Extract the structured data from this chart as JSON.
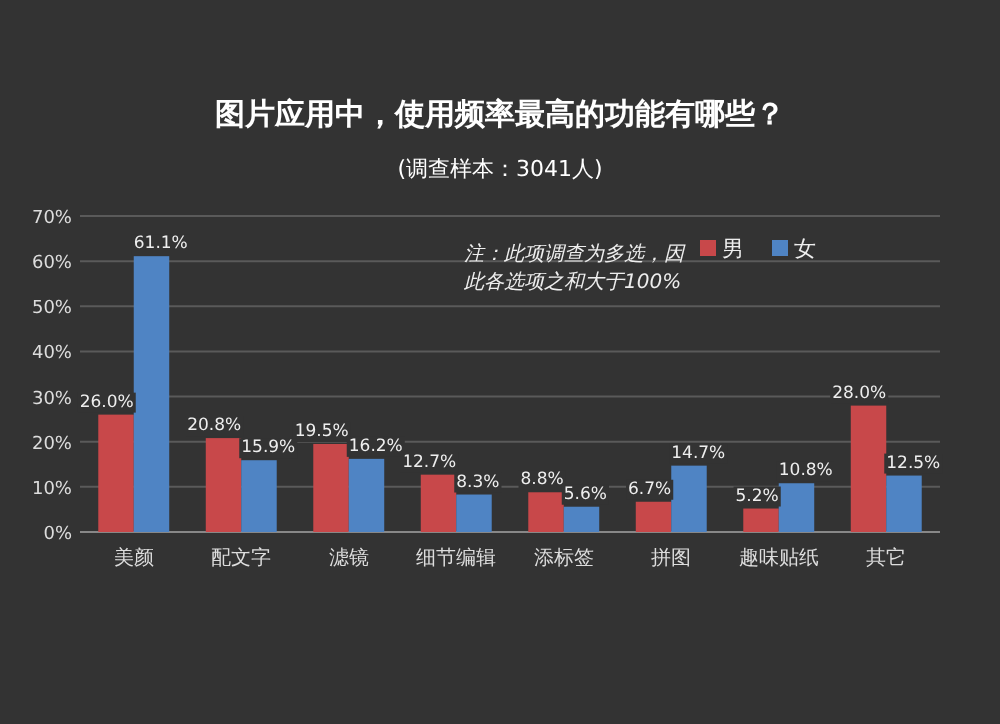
{
  "chart_data": {
    "type": "bar",
    "title": "图片应用中，使用频率最高的功能有哪些？",
    "subtitle": "(调查样本：3041人)",
    "annotations": [
      "注：此项调查为多选，因此各选项之和大于100%"
    ],
    "categories": [
      "美颜",
      "配文字",
      "滤镜",
      "细节编辑",
      "添标签",
      "拼图",
      "趣味贴纸",
      "其它"
    ],
    "series": [
      {
        "name": "男",
        "color": "#c8484a",
        "values": [
          26.0,
          20.8,
          19.5,
          12.7,
          8.8,
          6.7,
          5.2,
          28.0
        ],
        "value_labels": [
          "26.0%",
          "20.8%",
          "19.5%",
          "12.7%",
          "8.8%",
          "6.7%",
          "5.2%",
          "28.0%"
        ]
      },
      {
        "name": "女",
        "color": "#4f84c4",
        "values": [
          61.1,
          15.9,
          16.2,
          8.3,
          5.6,
          14.7,
          10.8,
          12.5
        ],
        "value_labels": [
          "61.1%",
          "15.9%",
          "16.2%",
          "8.3%",
          "5.6%",
          "14.7%",
          "10.8%",
          "12.5%"
        ]
      }
    ],
    "ylim": [
      0,
      70
    ],
    "yticks": [
      {
        "value": 0,
        "label": "0%"
      },
      {
        "value": 10,
        "label": "10%"
      },
      {
        "value": 20,
        "label": "20%"
      },
      {
        "value": 30,
        "label": "30%"
      },
      {
        "value": 40,
        "label": "40%"
      },
      {
        "value": 50,
        "label": "50%"
      },
      {
        "value": 60,
        "label": "60%"
      },
      {
        "value": 70,
        "label": "70%"
      }
    ],
    "grid": "y",
    "legend": "top right"
  }
}
